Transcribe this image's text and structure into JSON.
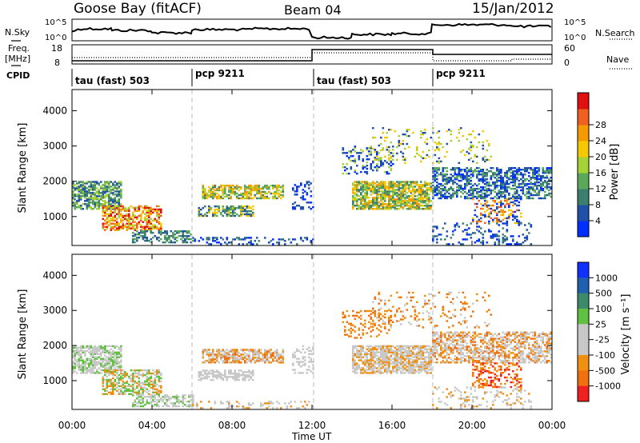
{
  "header": {
    "station": "Goose Bay (fitACF)",
    "beam": "Beam 04",
    "date": "15/Jan/2012"
  },
  "side_labels": {
    "nsky": "N.Sky",
    "freq": "Freq.",
    "freq_unit": "[MHz]",
    "cpid": "CPID",
    "nsearch": "N.Search",
    "nave": "Nave"
  },
  "noise_axis": {
    "left_top": "10^5",
    "left_bottom": "10^0",
    "right_top": "10^5",
    "right_bottom": "10^0"
  },
  "freq_axis": {
    "left_top": "18",
    "left_bottom": "8",
    "right_top": "60",
    "right_bottom": "0"
  },
  "cpid_segments": [
    {
      "label": "tau (fast) 503"
    },
    {
      "label": "pcp 9211"
    },
    {
      "label": "tau (fast) 503"
    },
    {
      "label": "pcp 9211"
    }
  ],
  "colors": {
    "power_scale": [
      "#0030ff",
      "#2050a8",
      "#3c7f6e",
      "#5aa85a",
      "#a6d238",
      "#f5c800",
      "#f59a00",
      "#f06020",
      "#e01010"
    ],
    "velocity_scale": [
      "#1030ff",
      "#2060b0",
      "#3c8a6a",
      "#60c040",
      "#c8c8c8",
      "#c8c8c8",
      "#f09010",
      "#f07010",
      "#f02020"
    ]
  },
  "chart_data": [
    {
      "type": "heatmap",
      "name": "power",
      "ylabel": "Slant Range [km]",
      "xlabel": "Time UT",
      "x_ticks": [
        "00:00",
        "04:00",
        "08:00",
        "12:00",
        "16:00",
        "20:00",
        "00:00"
      ],
      "y_ticks": [
        "1000",
        "2000",
        "3000",
        "4000"
      ],
      "ylim": [
        180,
        4600
      ],
      "colorbar_label": "Power [dB]",
      "colorbar_ticks": [
        "4",
        "8",
        "12",
        "16",
        "20",
        "24",
        "28"
      ]
    },
    {
      "type": "heatmap",
      "name": "velocity",
      "ylabel": "Slant Range [km]",
      "xlabel": "Time UT",
      "x_ticks": [
        "00:00",
        "04:00",
        "08:00",
        "12:00",
        "16:00",
        "20:00",
        "00:00"
      ],
      "y_ticks": [
        "1000",
        "2000",
        "3000",
        "4000"
      ],
      "ylim": [
        180,
        4600
      ],
      "colorbar_label": "Velocity [m s⁻¹]",
      "colorbar_ticks": [
        "1000",
        "500",
        "100",
        "25",
        "-25",
        "-100",
        "-500",
        "-1000"
      ]
    }
  ]
}
